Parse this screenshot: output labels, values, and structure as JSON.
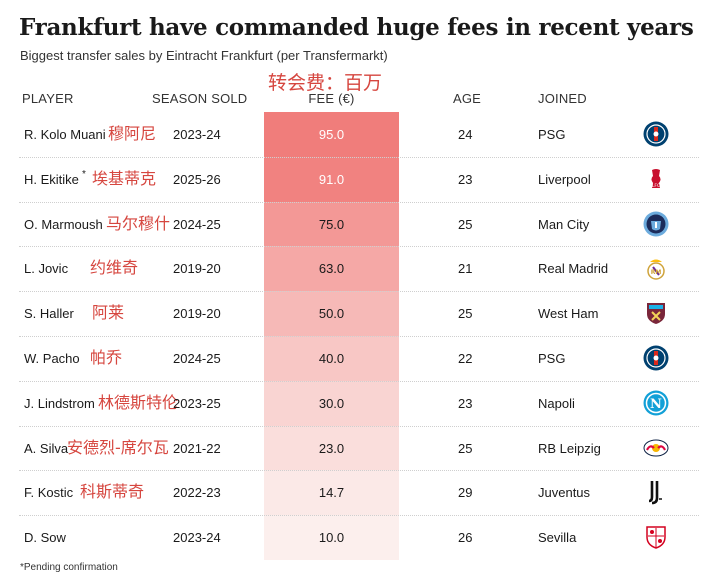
{
  "chart_data": {
    "type": "table",
    "title": "Frankfurt have commanded huge fees in recent years",
    "subtitle": "Biggest transfer sales by Eintracht Frankfurt (per Transfermarkt)",
    "annotation": "转会费：百万",
    "columns": [
      "PLAYER",
      "SEASON SOLD",
      "FEE (€)",
      "AGE",
      "JOINED"
    ],
    "rows": [
      {
        "player": "R. Kolo Muani",
        "player_cn": "穆阿尼",
        "season": "2023-24",
        "fee": 95.0,
        "fee_label": "95.0",
        "age": 24,
        "joined": "PSG",
        "logo": "psg-logo"
      },
      {
        "player": "H. Ekitike",
        "footnote_mark": "*",
        "player_cn": "埃基蒂克",
        "season": "2025-26",
        "fee": 91.0,
        "fee_label": "91.0",
        "age": 23,
        "joined": "Liverpool",
        "logo": "liverpool-logo"
      },
      {
        "player": "O. Marmoush",
        "player_cn": "马尔穆什",
        "season": "2024-25",
        "fee": 75.0,
        "fee_label": "75.0",
        "age": 25,
        "joined": "Man City",
        "logo": "man-city-logo"
      },
      {
        "player": "L. Jovic",
        "player_cn": "约维奇",
        "season": "2019-20",
        "fee": 63.0,
        "fee_label": "63.0",
        "age": 21,
        "joined": "Real Madrid",
        "logo": "real-madrid-logo"
      },
      {
        "player": "S. Haller",
        "player_cn": "阿莱",
        "season": "2019-20",
        "fee": 50.0,
        "fee_label": "50.0",
        "age": 25,
        "joined": "West Ham",
        "logo": "west-ham-logo"
      },
      {
        "player": "W. Pacho",
        "player_cn": "帕乔",
        "season": "2024-25",
        "fee": 40.0,
        "fee_label": "40.0",
        "age": 22,
        "joined": "PSG",
        "logo": "psg-logo"
      },
      {
        "player": "J. Lindstrom",
        "player_cn": "林德斯特伦",
        "season": "2023-25",
        "fee": 30.0,
        "fee_label": "30.0",
        "age": 23,
        "joined": "Napoli",
        "logo": "napoli-logo"
      },
      {
        "player": "A. Silva",
        "player_cn": "安德烈-席尔瓦",
        "season": "2021-22",
        "fee": 23.0,
        "fee_label": "23.0",
        "age": 25,
        "joined": "RB Leipzig",
        "logo": "rb-leipzig-logo"
      },
      {
        "player": "F. Kostic",
        "player_cn": "科斯蒂奇",
        "season": "2022-23",
        "fee": 14.7,
        "fee_label": "14.7",
        "age": 29,
        "joined": "Juventus",
        "logo": "juventus-logo"
      },
      {
        "player": "D. Sow",
        "player_cn": "",
        "season": "2023-24",
        "fee": 10.0,
        "fee_label": "10.0",
        "age": 26,
        "joined": "Sevilla",
        "logo": "sevilla-logo"
      }
    ],
    "fee_scale": {
      "min": 10.0,
      "max": 95.0,
      "color_low": "#fcefed",
      "color_high": "#f07d7b"
    },
    "footnote": "*Pending confirmation"
  },
  "colors": {
    "annotation_red": "#d6463f",
    "psg_blue": "#004170",
    "liverpool_red": "#c8102e",
    "man_city_blue": "#6cabdd",
    "west_ham_claret": "#7a263a",
    "napoli_blue": "#12a0d7",
    "leipzig_red": "#dd0741",
    "sevilla_red": "#d4001f"
  }
}
